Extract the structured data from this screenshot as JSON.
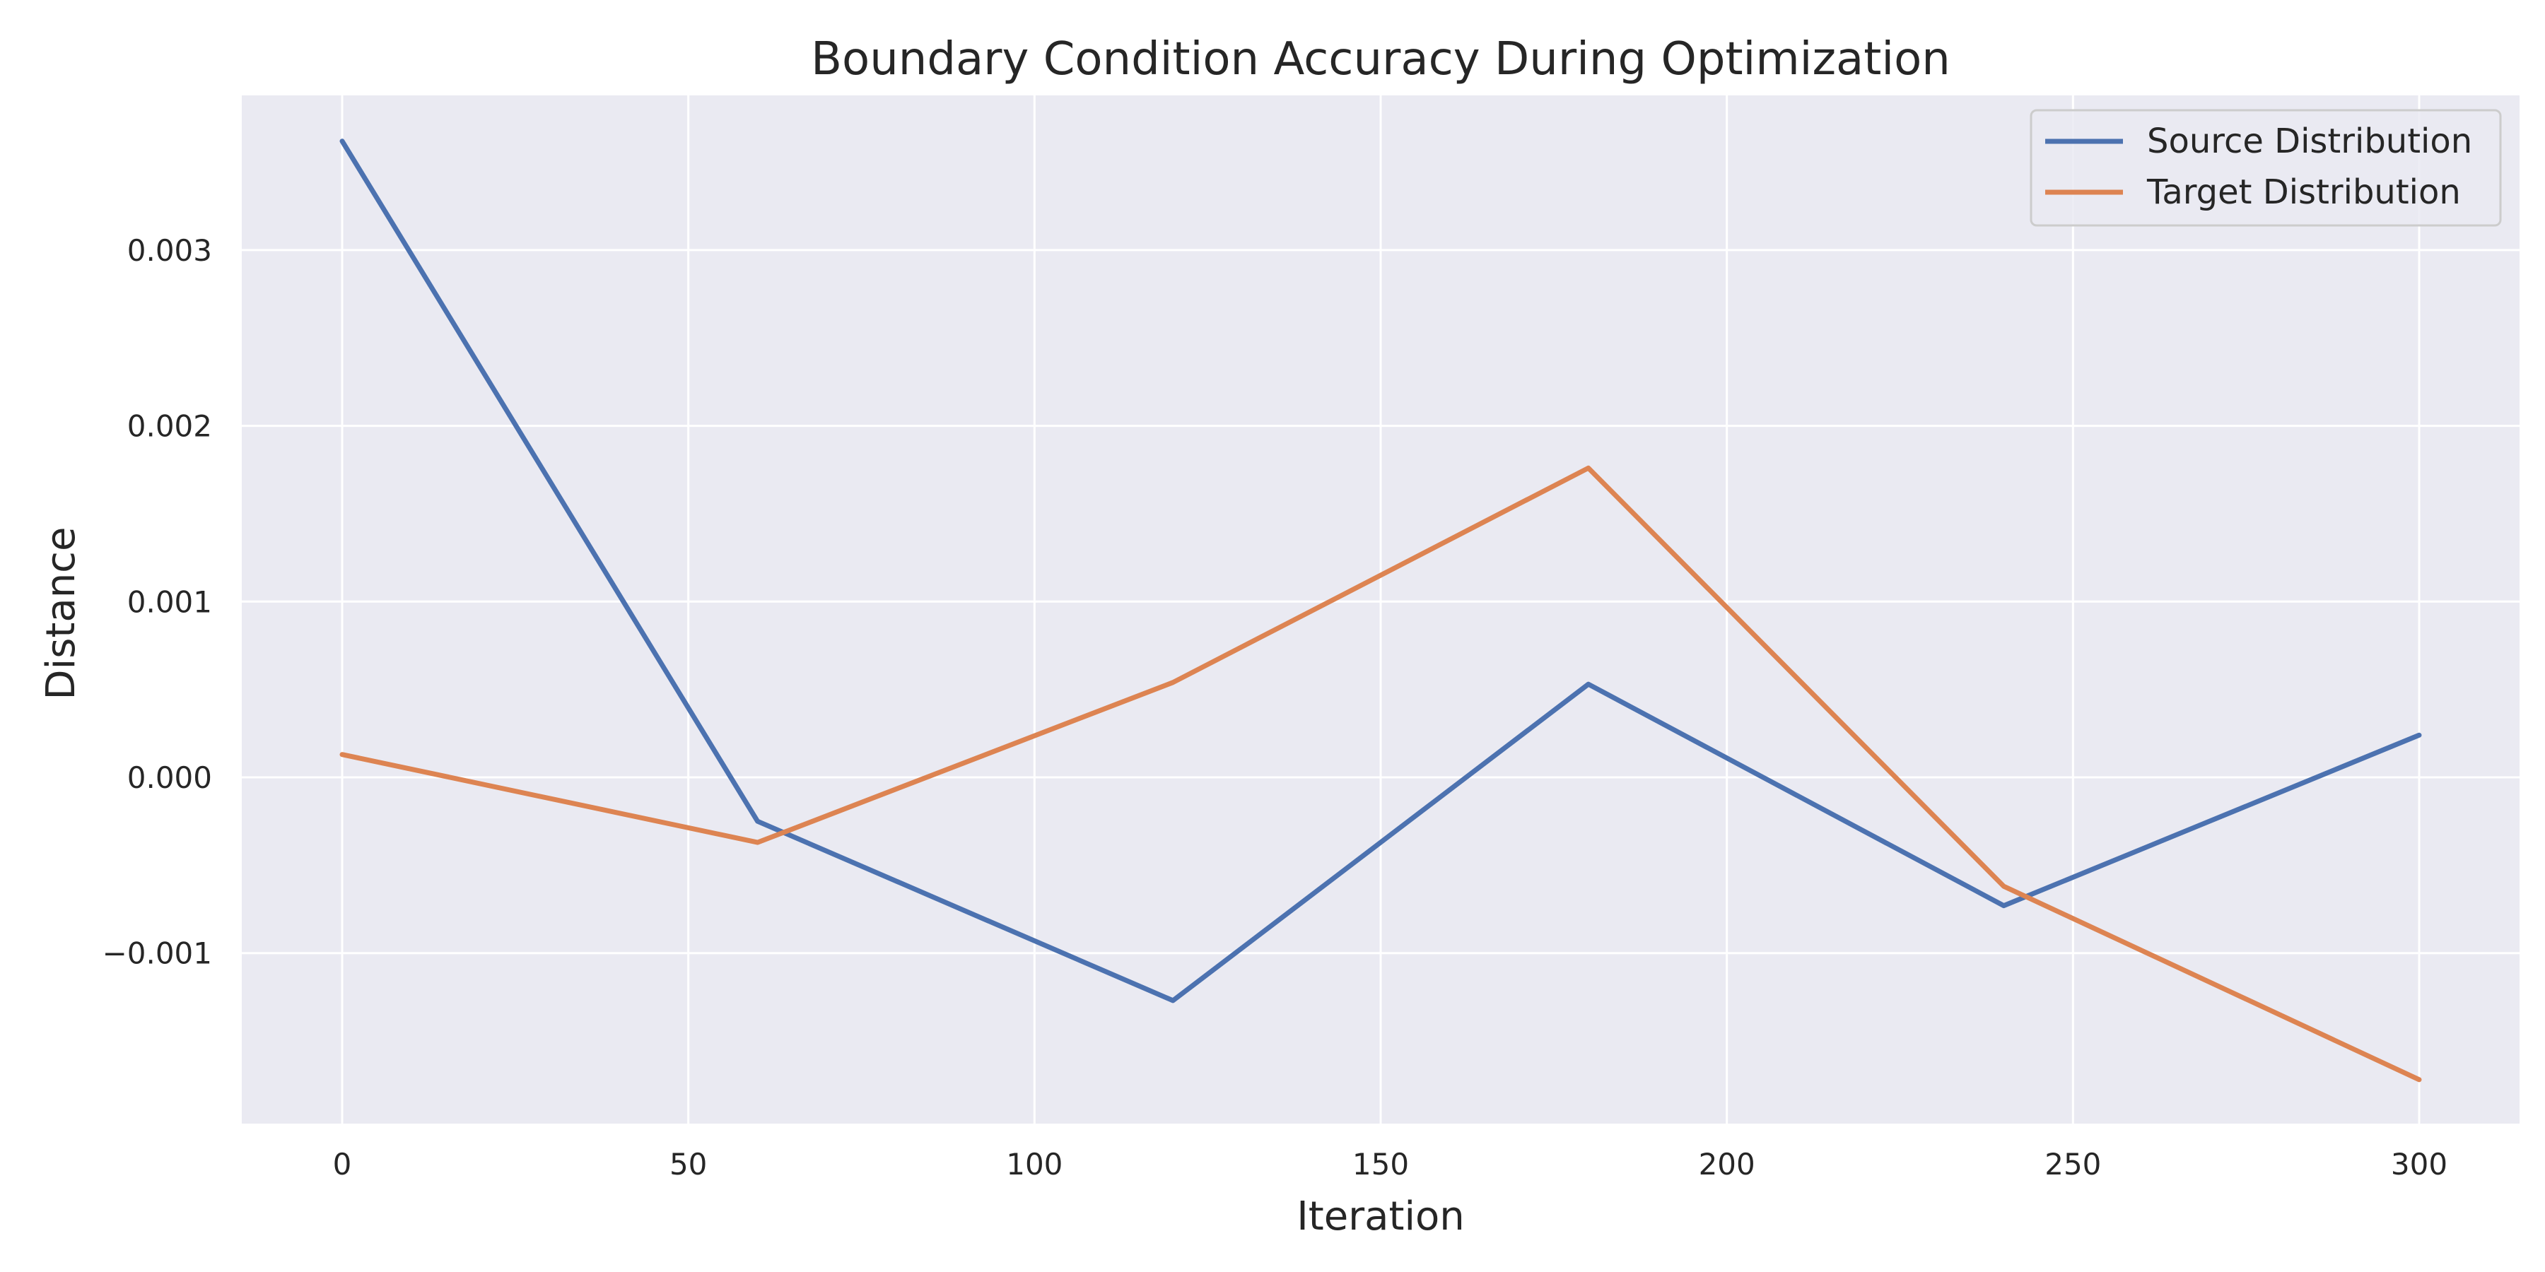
{
  "chart_data": {
    "type": "line",
    "title": "Boundary Condition Accuracy During Optimization",
    "xlabel": "Iteration",
    "ylabel": "Distance",
    "x": [
      0,
      60,
      120,
      180,
      240,
      300
    ],
    "series": [
      {
        "name": "Source Distribution",
        "color": "#4c72b0",
        "values": [
          0.00362,
          -0.00025,
          -0.00127,
          0.00053,
          -0.00073,
          0.00024
        ]
      },
      {
        "name": "Target Distribution",
        "color": "#dd8452",
        "values": [
          0.00013,
          -0.00037,
          0.00054,
          0.00176,
          -0.00062,
          -0.00172
        ]
      }
    ],
    "xlim": [
      -14.5,
      314.5
    ],
    "ylim": [
      -0.00197,
      0.00388
    ],
    "xticks": [
      0,
      50,
      100,
      150,
      200,
      250,
      300
    ],
    "xtick_labels": [
      "0",
      "50",
      "100",
      "150",
      "200",
      "250",
      "300"
    ],
    "yticks": [
      -0.001,
      0.0,
      0.001,
      0.002,
      0.003
    ],
    "ytick_labels": [
      "−0.001",
      "0.000",
      "0.001",
      "0.002",
      "0.003"
    ],
    "grid": true,
    "legend_position": "top-right",
    "background_color": "#eaeaf2",
    "grid_color": "#ffffff"
  }
}
